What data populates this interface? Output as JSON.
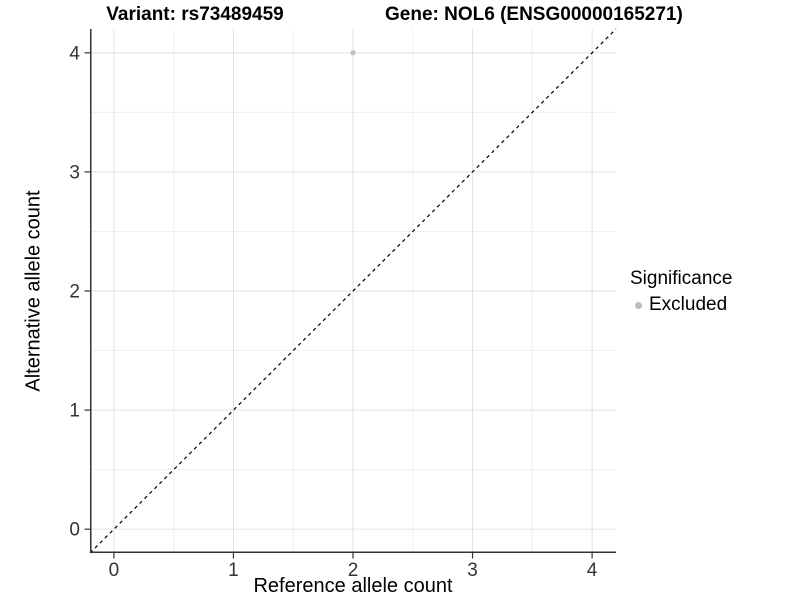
{
  "titles": {
    "variant": "Variant: rs73489459",
    "gene": "Gene: NOL6 (ENSG00000165271)"
  },
  "axes": {
    "x_title": "Reference allele count",
    "y_title": "Alternative allele count"
  },
  "legend": {
    "title": "Significance",
    "items": [
      {
        "label": "Excluded",
        "color": "#bdbdbd"
      }
    ]
  },
  "chart_data": {
    "type": "scatter",
    "title": "Variant: rs73489459 — Gene: NOL6 (ENSG00000165271)",
    "xlabel": "Reference allele count",
    "ylabel": "Alternative allele count",
    "xlim": [
      -0.2,
      4.2
    ],
    "ylim": [
      -0.2,
      4.2
    ],
    "xticks": [
      0,
      1,
      2,
      3,
      4
    ],
    "yticks": [
      0,
      1,
      2,
      3,
      4
    ],
    "minor_xticks": [
      0.5,
      1.5,
      2.5,
      3.5
    ],
    "minor_yticks": [
      0.5,
      1.5,
      2.5,
      3.5
    ],
    "grid": true,
    "legend_position": "right",
    "series": [
      {
        "name": "Excluded",
        "color": "#bdbdbd",
        "marker": "circle",
        "points": [
          {
            "x": 2,
            "y": 4
          }
        ]
      }
    ],
    "reference_line": {
      "kind": "identity",
      "equation": "y = x",
      "style": "dashed",
      "color": "#000000"
    },
    "style": {
      "grid_major_color": "#e2e2e2",
      "grid_minor_color": "#f0f0f0",
      "axis_line_color": "#333333",
      "tick_label_color": "#333333",
      "tick_label_size": 19,
      "point_radius": 2.6
    }
  }
}
